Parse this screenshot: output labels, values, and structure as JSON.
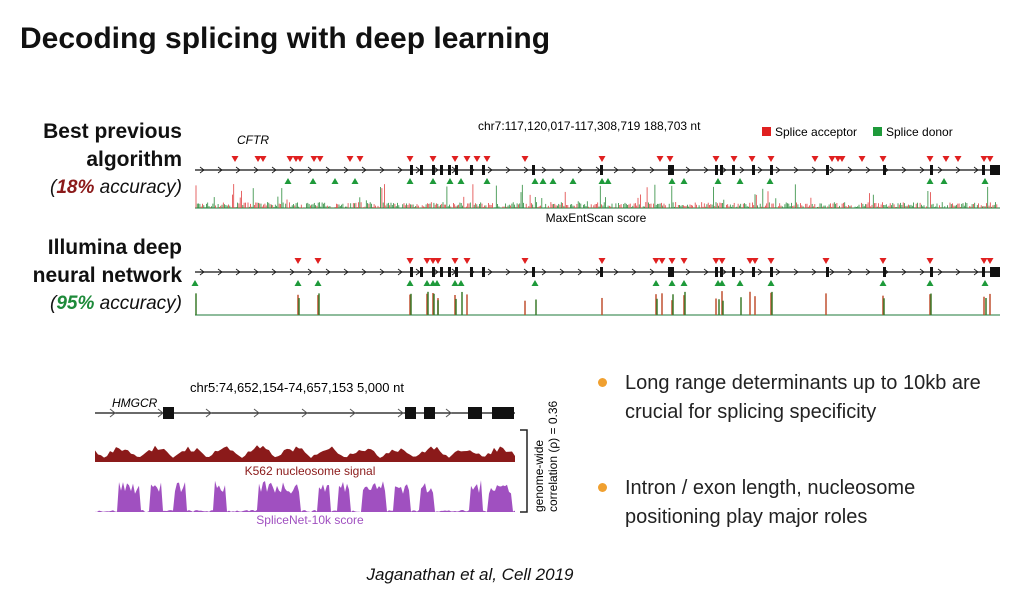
{
  "header": {
    "title": "Decoding splicing with deep learning"
  },
  "top_figure": {
    "row1": {
      "line1": "Best previous",
      "line2": "algorithm",
      "acc_open": "(",
      "acc_value": "18%",
      "acc_rest": " accuracy)"
    },
    "row2": {
      "line1": "Illumina deep",
      "line2": "neural network",
      "acc_open": "(",
      "acc_value": "95%",
      "acc_rest": " accuracy)"
    },
    "gene": "CFTR",
    "coordinates": "chr7:117,120,017-117,308,719  188,703 nt",
    "legend": [
      "Splice acceptor",
      "Splice donor"
    ],
    "score_label": "MaxEntScan score"
  },
  "bottom_figure": {
    "gene": "HMGCR",
    "coordinates": "chr5:74,652,154-74,657,153  5,000 nt",
    "track1_label": "K562 nucleosome signal",
    "track2_label": "SpliceNet-10k score",
    "side_line1": "genome-wide",
    "side_line2": "correlation (ρ) = 0.36"
  },
  "bullets": [
    "Long range determinants up to 10kb are crucial for splicing specificity",
    "Intron / exon length, nucleosome positioning play major roles"
  ],
  "citation": "Jaganathan et al, Cell 2019"
}
